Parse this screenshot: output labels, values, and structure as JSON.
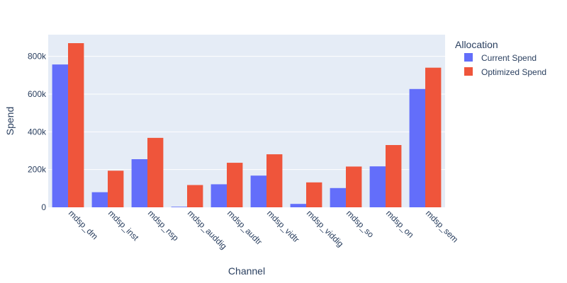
{
  "chart_data": {
    "type": "bar",
    "barmode": "group",
    "categories": [
      "mdsp_dm",
      "mdsp_inst",
      "mdsp_nsp",
      "mdsp_auddig",
      "mdsp_audtr",
      "mdsp_vidtr",
      "mdsp_viddig",
      "mdsp_so",
      "mdsp_on",
      "mdsp_sem"
    ],
    "series": [
      {
        "name": "Current Spend",
        "color": "#636efa",
        "values": [
          757000,
          80000,
          255000,
          3000,
          122000,
          168000,
          18000,
          102000,
          217000,
          627000
        ]
      },
      {
        "name": "Optimized Spend",
        "color": "#ef553b",
        "values": [
          870000,
          194000,
          368000,
          118000,
          236000,
          281000,
          132000,
          216000,
          330000,
          740000
        ]
      }
    ],
    "xlabel": "Channel",
    "ylabel": "Spend",
    "ylim": [
      0,
      915000
    ],
    "yticks": [
      0,
      200000,
      400000,
      600000,
      800000
    ],
    "ytick_labels": [
      "0",
      "200k",
      "400k",
      "600k",
      "800k"
    ],
    "legend_title": "Allocation",
    "legend_position": "right",
    "grid": true,
    "plot_background": "#e5ecf6"
  }
}
